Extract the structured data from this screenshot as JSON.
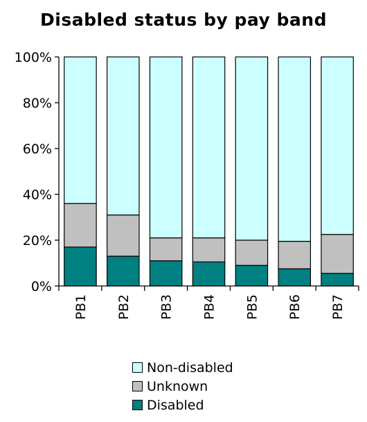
{
  "chart_data": {
    "type": "bar",
    "stacked": true,
    "title": "Disabled status by pay band",
    "categories": [
      "PB1",
      "PB2",
      "PB3",
      "PB4",
      "PB5",
      "PB6",
      "PB7"
    ],
    "series": [
      {
        "name": "Disabled",
        "values": [
          17,
          13,
          11,
          10.5,
          9,
          7.5,
          5.5
        ],
        "color": "#008080"
      },
      {
        "name": "Unknown",
        "values": [
          19,
          18,
          10,
          10.5,
          11,
          12,
          17
        ],
        "color": "#c0c0c0"
      },
      {
        "name": "Non-disabled",
        "values": [
          64,
          69,
          79,
          79,
          80,
          80.5,
          77.5
        ],
        "color": "#ccffff"
      }
    ],
    "ylim": [
      0,
      100
    ],
    "y_ticks": [
      "0%",
      "20%",
      "40%",
      "60%",
      "80%",
      "100%"
    ],
    "y_tick_values": [
      0,
      20,
      40,
      60,
      80,
      100
    ],
    "legend_position": "bottom",
    "legend_order": [
      "Non-disabled",
      "Unknown",
      "Disabled"
    ],
    "grid": false
  }
}
